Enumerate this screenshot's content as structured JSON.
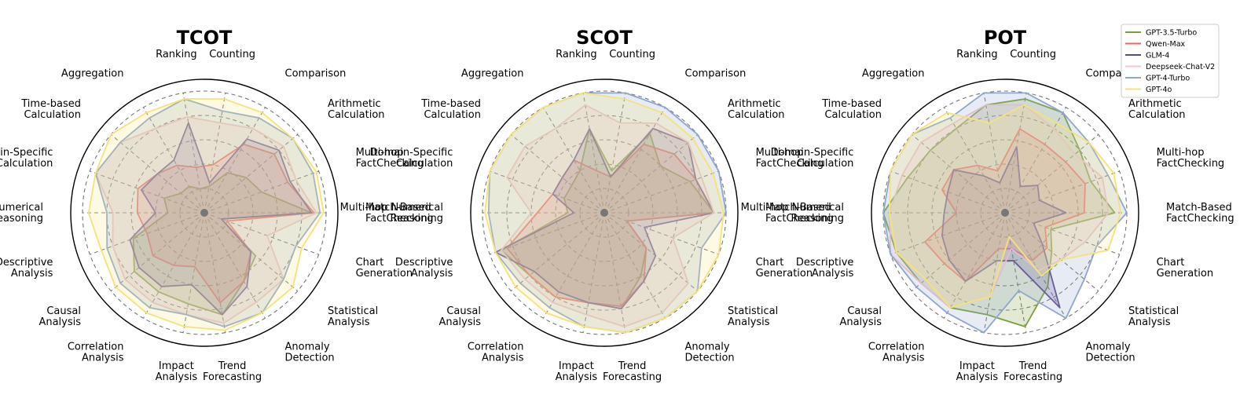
{
  "chart_data": {
    "type": "radar",
    "categories": [
      "Match-Based FactChecking",
      "Multi-hop FactChecking",
      "Arithmetic Calculation",
      "Comparison",
      "Counting",
      "Ranking",
      "Aggregation",
      "Time-based Calculation",
      "Domain-Specific Calculation",
      "Multi-hop Numerical Reasoning",
      "Descriptive Analysis",
      "Causal Analysis",
      "Correlation Analysis",
      "Impact Analysis",
      "Trend Forecasting",
      "Anomaly Detection",
      "Statistical Analysis",
      "Chart Generation"
    ],
    "rlim": [
      0,
      100
    ],
    "grid": true,
    "legend": {
      "placement": "top-right",
      "entries": [
        {
          "name": "GPT-3.5-Turbo",
          "color": "#7aa13c"
        },
        {
          "name": "Qwen-Max",
          "color": "#f0655a"
        },
        {
          "name": "GLM-4",
          "color": "#5f4a8c"
        },
        {
          "name": "Deepseek-Chat-V2",
          "color": "#f5c7cc"
        },
        {
          "name": "GPT-4-Turbo",
          "color": "#8fa6cf"
        },
        {
          "name": "GPT-4o",
          "color": "#f5e27a"
        }
      ]
    },
    "charts": [
      {
        "title": "TCOT",
        "series": [
          {
            "name": "GPT-3.5-Turbo",
            "values": [
              88,
              50,
              45,
              38,
              22,
              20,
              25,
              25,
              35,
              30,
              62,
              75,
              75,
              76,
              85,
              65,
              55,
              15
            ]
          },
          {
            "name": "Qwen-Max",
            "values": [
              90,
              73,
              75,
              65,
              40,
              38,
              45,
              50,
              58,
              55,
              50,
              55,
              50,
              45,
              75,
              65,
              50,
              20
            ]
          },
          {
            "name": "GLM-4",
            "values": [
              88,
              75,
              80,
              70,
              25,
              75,
              50,
              50,
              55,
              40,
              65,
              70,
              70,
              60,
              85,
              70,
              50,
              15
            ]
          },
          {
            "name": "Deepseek-Chat-V2",
            "values": [
              92,
              80,
              85,
              80,
              75,
              80,
              80,
              90,
              95,
              75,
              80,
              85,
              85,
              85,
              92,
              85,
              85,
              55
            ]
          },
          {
            "name": "GPT-4-Turbo",
            "values": [
              95,
              95,
              95,
              90,
              85,
              95,
              90,
              90,
              95,
              80,
              85,
              90,
              90,
              85,
              95,
              95,
              85,
              80
            ]
          },
          {
            "name": "GPT-4o",
            "values": [
              98,
              98,
              95,
              95,
              95,
              95,
              95,
              100,
              95,
              95,
              90,
              95,
              95,
              95,
              98,
              95,
              95,
              85
            ]
          }
        ]
      },
      {
        "title": "SCOT",
        "series": [
          {
            "name": "GPT-3.5-Turbo",
            "values": [
              90,
              75,
              60,
              75,
              35,
              70,
              40,
              35,
              35,
              30,
              90,
              80,
              80,
              75,
              80,
              60,
              45,
              20
            ]
          },
          {
            "name": "Qwen-Max",
            "values": [
              90,
              80,
              75,
              65,
              30,
              35,
              50,
              45,
              45,
              55,
              85,
              80,
              80,
              75,
              78,
              65,
              45,
              20
            ]
          },
          {
            "name": "GLM-4",
            "values": [
              90,
              80,
              90,
              80,
              30,
              70,
              50,
              45,
              45,
              25,
              95,
              75,
              75,
              75,
              80,
              65,
              55,
              35
            ]
          },
          {
            "name": "Deepseek-Chat-V2",
            "values": [
              90,
              85,
              90,
              85,
              75,
              90,
              80,
              85,
              85,
              60,
              90,
              85,
              85,
              85,
              95,
              95,
              90,
              60
            ]
          },
          {
            "name": "GPT-4-Turbo",
            "values": [
              100,
              100,
              100,
              100,
              100,
              100,
              100,
              100,
              100,
              95,
              95,
              90,
              90,
              95,
              100,
              100,
              100,
              85
            ]
          },
          {
            "name": "GPT-4o",
            "values": [
              98,
              95,
              95,
              95,
              95,
              100,
              100,
              100,
              100,
              98,
              95,
              95,
              95,
              95,
              100,
              100,
              100,
              100
            ]
          }
        ]
      },
      {
        "title": "POT",
        "series": [
          {
            "name": "GPT-3.5-Turbo",
            "values": [
              90,
              75,
              80,
              95,
              95,
              90,
              80,
              80,
              85,
              100,
              95,
              90,
              90,
              85,
              95,
              70,
              50,
              40
            ]
          },
          {
            "name": "Qwen-Max",
            "values": [
              65,
              70,
              65,
              65,
              70,
              35,
              45,
              55,
              55,
              40,
              70,
              65,
              65,
              30,
              30,
              45,
              45,
              35
            ]
          },
          {
            "name": "GLM-4",
            "values": [
              50,
              30,
              35,
              25,
              55,
              25,
              35,
              55,
              50,
              50,
              55,
              60,
              65,
              40,
              40,
              90,
              40,
              25
            ]
          },
          {
            "name": "Deepseek-Chat-V2",
            "values": [
              85,
              85,
              75,
              80,
              90,
              90,
              85,
              90,
              90,
              95,
              100,
              90,
              90,
              70,
              30,
              55,
              60,
              70
            ]
          },
          {
            "name": "GPT-4-Turbo",
            "values": [
              100,
              90,
              90,
              95,
              100,
              100,
              90,
              100,
              100,
              100,
              100,
              95,
              95,
              100,
              65,
              100,
              85,
              80
            ]
          },
          {
            "name": "GPT-4o",
            "values": [
              95,
              95,
              90,
              85,
              90,
              75,
              95,
              100,
              100,
              95,
              95,
              85,
              90,
              70,
              20,
              60,
              60,
              90
            ]
          }
        ]
      }
    ]
  }
}
